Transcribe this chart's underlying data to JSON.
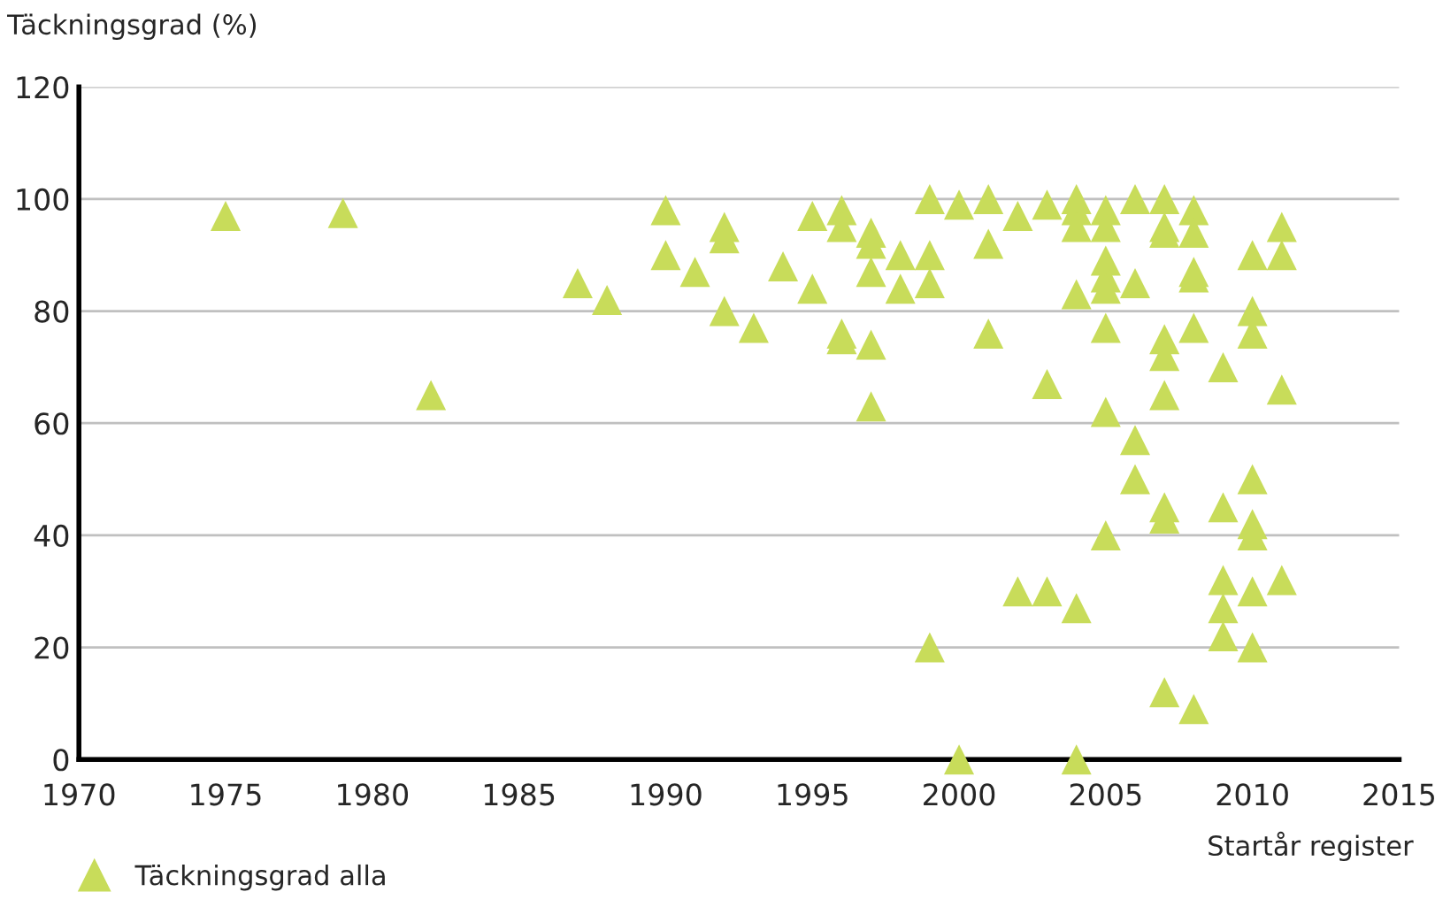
{
  "chart_data": {
    "type": "scatter",
    "ylabel": "Täckningsgrad (%)",
    "xlabel": "Startår register",
    "xlim": [
      1970,
      2015
    ],
    "xticks": [
      1970,
      1975,
      1980,
      1985,
      1990,
      1995,
      2000,
      2005,
      2010,
      2015
    ],
    "ylim": [
      0,
      120
    ],
    "yticks": [
      0,
      20,
      40,
      60,
      80,
      100,
      120
    ],
    "grid": "y",
    "legend": "bottom left",
    "marker": "triangle",
    "series": [
      {
        "name": "Täckningsgrad alla",
        "color": "#c8dc5a",
        "x": [
          1975,
          1979,
          1982,
          1987,
          1988,
          1990,
          1990,
          1991,
          1992,
          1992,
          1992,
          1993,
          1994,
          1995,
          1995,
          1996,
          1996,
          1996,
          1996,
          1997,
          1997,
          1997,
          1997,
          1997,
          1998,
          1998,
          1999,
          1999,
          1999,
          1999,
          2000,
          2000,
          2001,
          2001,
          2001,
          2002,
          2002,
          2003,
          2003,
          2003,
          2004,
          2004,
          2004,
          2004,
          2004,
          2004,
          2005,
          2005,
          2005,
          2005,
          2005,
          2005,
          2005,
          2005,
          2006,
          2006,
          2006,
          2006,
          2007,
          2007,
          2007,
          2007,
          2007,
          2007,
          2007,
          2007,
          2007,
          2008,
          2008,
          2008,
          2008,
          2008,
          2008,
          2009,
          2009,
          2009,
          2009,
          2009,
          2010,
          2010,
          2010,
          2010,
          2010,
          2010,
          2010,
          2010,
          2011,
          2011,
          2011,
          2011
        ],
        "values": [
          97,
          97.5,
          65,
          85,
          82,
          98,
          90,
          87,
          95,
          93,
          80,
          77,
          88,
          97,
          84,
          98,
          95,
          76,
          75,
          94,
          92,
          87,
          74,
          63,
          90,
          84,
          100,
          90,
          85,
          20,
          99,
          0,
          100,
          92,
          76,
          97,
          30,
          99,
          67,
          30,
          100,
          98,
          95,
          83,
          27,
          0,
          98,
          95,
          89,
          86,
          84,
          77,
          62,
          40,
          100,
          85,
          57,
          50,
          100,
          95,
          94,
          75,
          72,
          65,
          45,
          43,
          12,
          98,
          94,
          87,
          86,
          77,
          9,
          70,
          45,
          32,
          27,
          22,
          90,
          80,
          76,
          50,
          42,
          40,
          30,
          20,
          95,
          90,
          66,
          32
        ]
      }
    ]
  }
}
